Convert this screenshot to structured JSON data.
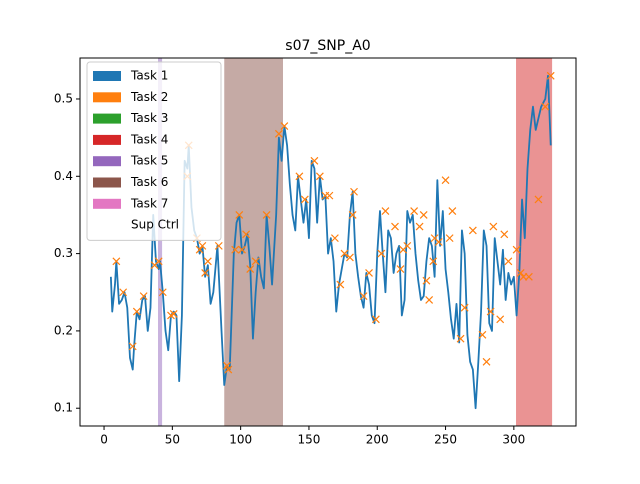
{
  "chart_data": {
    "type": "line",
    "title": "s07_SNP_A0",
    "xlim": [
      -17.6,
      345.5
    ],
    "ylim": [
      0.077,
      0.553
    ],
    "xticks": [
      0,
      50,
      100,
      150,
      200,
      250,
      300
    ],
    "yticks": [
      0.1,
      0.2,
      0.3,
      0.4,
      0.5
    ],
    "grid": false,
    "legend_loc": "upper left",
    "legend": [
      {
        "name": "Task 1",
        "color": "#1f77b4"
      },
      {
        "name": "Task 2",
        "color": "#ff7f0e"
      },
      {
        "name": "Task 3",
        "color": "#2ca02c"
      },
      {
        "name": "Task 4",
        "color": "#d62728"
      },
      {
        "name": "Task 5",
        "color": "#9467bd"
      },
      {
        "name": "Task 6",
        "color": "#8c564b"
      },
      {
        "name": "Task 7",
        "color": "#e377c2"
      },
      {
        "name": "Sup Ctrl",
        "color": "#ffffff"
      }
    ],
    "spans": [
      {
        "range": [
          39.5,
          42.5
        ],
        "color": "#9467bd",
        "alpha": 0.5
      },
      {
        "range": [
          88,
          131
        ],
        "color": "#8c564b",
        "alpha": 0.5
      },
      {
        "range": [
          301.6,
          328
        ],
        "color": "#d62728",
        "alpha": 0.5
      }
    ],
    "series": [
      {
        "color": "#1f77b4",
        "marker": "none",
        "x": [
          5,
          6,
          8,
          9,
          11,
          13,
          15,
          17,
          19,
          21,
          22,
          24,
          26,
          28,
          30,
          32,
          34,
          36,
          38,
          40,
          41,
          43,
          45,
          47,
          49,
          51,
          53,
          55,
          57,
          59,
          61,
          62,
          64,
          66,
          68,
          70,
          72,
          74,
          76,
          78,
          80,
          83,
          86,
          88,
          90,
          92,
          95,
          97,
          99,
          101,
          103,
          105,
          107,
          109,
          111,
          113,
          115,
          117,
          119,
          121,
          123,
          126,
          128,
          130,
          132,
          134,
          136,
          138,
          140,
          142,
          144,
          146,
          148,
          150,
          152,
          154,
          156,
          158,
          160,
          162,
          164,
          166,
          168,
          170,
          172,
          174,
          176,
          178,
          180,
          182,
          184,
          186,
          188,
          190,
          192,
          194,
          196,
          198,
          200,
          202,
          204,
          206,
          208,
          210,
          212,
          214,
          216,
          218,
          220,
          222,
          224,
          226,
          228,
          230,
          232,
          234,
          236,
          238,
          240,
          242,
          244,
          246,
          248,
          250,
          252,
          254,
          256,
          258,
          260,
          262,
          264,
          266,
          268,
          270,
          272,
          274,
          276,
          278,
          280,
          282,
          284,
          286,
          288,
          290,
          292,
          294,
          296,
          298,
          300,
          302,
          304,
          306,
          308,
          310,
          312,
          314,
          316,
          320,
          323,
          325,
          327
        ],
        "values": [
          0.27,
          0.225,
          0.26,
          0.29,
          0.235,
          0.24,
          0.25,
          0.23,
          0.165,
          0.15,
          0.18,
          0.225,
          0.215,
          0.24,
          0.245,
          0.2,
          0.23,
          0.35,
          0.29,
          0.28,
          0.29,
          0.25,
          0.2,
          0.175,
          0.22,
          0.225,
          0.22,
          0.135,
          0.22,
          0.42,
          0.41,
          0.44,
          0.36,
          0.33,
          0.32,
          0.3,
          0.31,
          0.27,
          0.285,
          0.235,
          0.25,
          0.31,
          0.2,
          0.13,
          0.155,
          0.15,
          0.3,
          0.34,
          0.35,
          0.3,
          0.31,
          0.325,
          0.285,
          0.19,
          0.25,
          0.295,
          0.27,
          0.255,
          0.35,
          0.31,
          0.26,
          0.35,
          0.45,
          0.42,
          0.465,
          0.44,
          0.39,
          0.35,
          0.33,
          0.4,
          0.37,
          0.34,
          0.37,
          0.32,
          0.42,
          0.41,
          0.34,
          0.4,
          0.37,
          0.375,
          0.3,
          0.32,
          0.29,
          0.225,
          0.26,
          0.28,
          0.3,
          0.295,
          0.35,
          0.38,
          0.3,
          0.27,
          0.245,
          0.23,
          0.275,
          0.26,
          0.22,
          0.21,
          0.3,
          0.355,
          0.3,
          0.25,
          0.33,
          0.32,
          0.275,
          0.3,
          0.31,
          0.22,
          0.24,
          0.355,
          0.34,
          0.35,
          0.3,
          0.265,
          0.24,
          0.245,
          0.29,
          0.32,
          0.31,
          0.27,
          0.395,
          0.31,
          0.355,
          0.28,
          0.25,
          0.215,
          0.19,
          0.235,
          0.185,
          0.33,
          0.3,
          0.195,
          0.16,
          0.15,
          0.1,
          0.16,
          0.225,
          0.33,
          0.31,
          0.21,
          0.2,
          0.32,
          0.29,
          0.26,
          0.305,
          0.24,
          0.275,
          0.26,
          0.27,
          0.22,
          0.275,
          0.37,
          0.32,
          0.41,
          0.46,
          0.49,
          0.46,
          0.49,
          0.5,
          0.53,
          0.44
        ]
      },
      {
        "color": "#ff7f0e",
        "marker": "x",
        "x": [
          9,
          14,
          21,
          24,
          29,
          37,
          40,
          43,
          49,
          51,
          61,
          62,
          68,
          70,
          72,
          74,
          76,
          84,
          90,
          91,
          96,
          99,
          101,
          104,
          107,
          111,
          119,
          128,
          132,
          143,
          147,
          154,
          158,
          162,
          165,
          169,
          173,
          176,
          180,
          182,
          183,
          190,
          194,
          199,
          203,
          206,
          213,
          217,
          219,
          222,
          227,
          231,
          234,
          236,
          238,
          241,
          242,
          245,
          250,
          253,
          255,
          261,
          264,
          270,
          277,
          280,
          283,
          285,
          290,
          293,
          296,
          302,
          305,
          307,
          311,
          318,
          323,
          327
        ],
        "values": [
          0.29,
          0.25,
          0.18,
          0.225,
          0.245,
          0.285,
          0.29,
          0.25,
          0.22,
          0.222,
          0.4,
          0.44,
          0.32,
          0.305,
          0.31,
          0.275,
          0.29,
          0.31,
          0.155,
          0.15,
          0.305,
          0.35,
          0.305,
          0.325,
          0.28,
          0.29,
          0.35,
          0.455,
          0.465,
          0.4,
          0.37,
          0.42,
          0.4,
          0.375,
          0.375,
          0.32,
          0.26,
          0.3,
          0.295,
          0.35,
          0.38,
          0.245,
          0.275,
          0.215,
          0.3,
          0.355,
          0.335,
          0.28,
          0.305,
          0.31,
          0.355,
          0.335,
          0.35,
          0.265,
          0.24,
          0.29,
          0.32,
          0.315,
          0.395,
          0.32,
          0.355,
          0.19,
          0.23,
          0.33,
          0.195,
          0.16,
          0.225,
          0.335,
          0.215,
          0.325,
          0.29,
          0.305,
          0.275,
          0.27,
          0.27,
          0.37,
          0.49,
          0.53
        ]
      }
    ]
  }
}
